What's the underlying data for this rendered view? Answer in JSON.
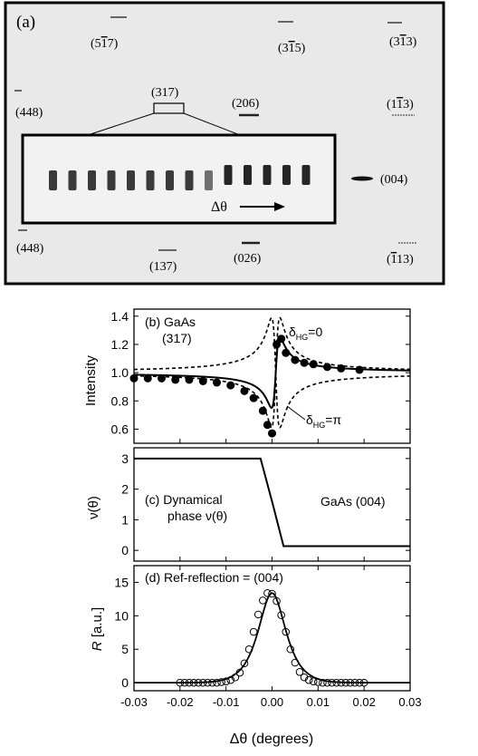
{
  "panel_a": {
    "label": "(a)",
    "reflections": [
      {
        "id": "r517",
        "pre": "(5",
        "bar": "1",
        "post": "7)"
      },
      {
        "id": "r315",
        "pre": "(3",
        "bar": "1",
        "post": "5)"
      },
      {
        "id": "r313",
        "pre": "(3",
        "bar": "1",
        "post": "3)"
      },
      {
        "id": "r448a",
        "pre": "(448)",
        "bar": "",
        "post": ""
      },
      {
        "id": "r317",
        "pre": "(317)",
        "bar": "",
        "post": ""
      },
      {
        "id": "r206",
        "pre": "(206)",
        "bar": "",
        "post": ""
      },
      {
        "id": "r113",
        "pre": "(1",
        "bar": "1",
        "post": "3)"
      },
      {
        "id": "r004",
        "pre": "(004)",
        "bar": "",
        "post": ""
      },
      {
        "id": "r448b",
        "pre": "(448)",
        "bar": "",
        "post": ""
      },
      {
        "id": "r137",
        "pre": "(137)",
        "bar": "",
        "post": ""
      },
      {
        "id": "r026",
        "pre": "(026)",
        "bar": "",
        "post": ""
      },
      {
        "id": "r113b",
        "pre": "(",
        "bar": "1",
        "post": "13)"
      }
    ],
    "inset_arrow_label": "Δθ"
  },
  "chart_data": [
    {
      "type": "scatter",
      "panel": "(b)",
      "annotation_1": "GaAs",
      "annotation_2": "(317)",
      "ylabel": "Intensity",
      "xlim": [
        -0.03,
        0.03
      ],
      "ylim": [
        0.5,
        1.45
      ],
      "yticks": [
        "0.6",
        "0.8",
        "1.0",
        "1.2",
        "1.4"
      ],
      "curve_label_0": "δ",
      "curve_label_0_sub": "HG",
      "curve_label_0_tail": "=0",
      "curve_label_pi": "δ",
      "curve_label_pi_sub": "HG",
      "curve_label_pi_tail": "=π",
      "points": {
        "x": [
          -0.03,
          -0.027,
          -0.024,
          -0.021,
          -0.018,
          -0.015,
          -0.012,
          -0.009,
          -0.006,
          -0.004,
          -0.002,
          -0.001,
          0.0,
          0.001,
          0.002,
          0.003,
          0.005,
          0.007,
          0.009,
          0.012,
          0.015,
          0.019
        ],
        "y": [
          0.96,
          0.96,
          0.96,
          0.95,
          0.95,
          0.94,
          0.93,
          0.91,
          0.87,
          0.82,
          0.73,
          0.63,
          0.57,
          1.2,
          1.24,
          1.14,
          1.09,
          1.07,
          1.06,
          1.04,
          1.03,
          1.02
        ]
      }
    },
    {
      "type": "line",
      "panel": "(c)",
      "annotation_1": "Dynamical",
      "annotation_2": "phase ν(θ)",
      "annotation_3": "GaAs (004)",
      "ylabel": "ν(θ)",
      "xlim": [
        -0.03,
        0.03
      ],
      "ylim": [
        -0.35,
        3.35
      ],
      "yticks": [
        "0",
        "1",
        "2",
        "3"
      ],
      "x": [
        -0.03,
        -0.0025,
        0.0,
        0.0025,
        0.03
      ],
      "y": [
        3.0,
        3.0,
        1.6,
        0.14,
        0.14
      ]
    },
    {
      "type": "scatter",
      "panel": "(d)",
      "annotation_1": "Ref-reflection = (004)",
      "ylabel_italic": "R",
      "ylabel_rest": " [a.u.]",
      "xlabel": "Δθ  (degrees)",
      "xlim": [
        -0.03,
        0.03
      ],
      "ylim": [
        -1.2,
        17.5
      ],
      "yticks": [
        "0",
        "5",
        "10",
        "15"
      ],
      "xticks": [
        "-0.03",
        "-0.02",
        "-0.01",
        "0.00",
        "0.01",
        "0.02",
        "0.03"
      ],
      "points": {
        "x": [
          -0.02,
          -0.019,
          -0.018,
          -0.017,
          -0.016,
          -0.015,
          -0.014,
          -0.013,
          -0.012,
          -0.011,
          -0.01,
          -0.009,
          -0.008,
          -0.007,
          -0.006,
          -0.005,
          -0.004,
          -0.003,
          -0.002,
          -0.001,
          0.0,
          0.001,
          0.002,
          0.003,
          0.004,
          0.005,
          0.006,
          0.007,
          0.008,
          0.009,
          0.01,
          0.011,
          0.012,
          0.013,
          0.014,
          0.015,
          0.016,
          0.017,
          0.018,
          0.019,
          0.02
        ],
        "y": [
          0.0,
          0.0,
          0.0,
          0.0,
          0.0,
          0.0,
          0.0,
          0.0,
          0.0,
          0.1,
          0.2,
          0.4,
          0.8,
          1.5,
          2.9,
          5.0,
          7.6,
          10.2,
          12.3,
          13.4,
          13.3,
          12.2,
          10.1,
          7.6,
          5.0,
          3.0,
          1.6,
          0.8,
          0.4,
          0.2,
          0.1,
          0.0,
          0.0,
          0.0,
          0.0,
          0.0,
          0.0,
          0.0,
          0.0,
          0.0,
          0.0
        ]
      }
    }
  ]
}
